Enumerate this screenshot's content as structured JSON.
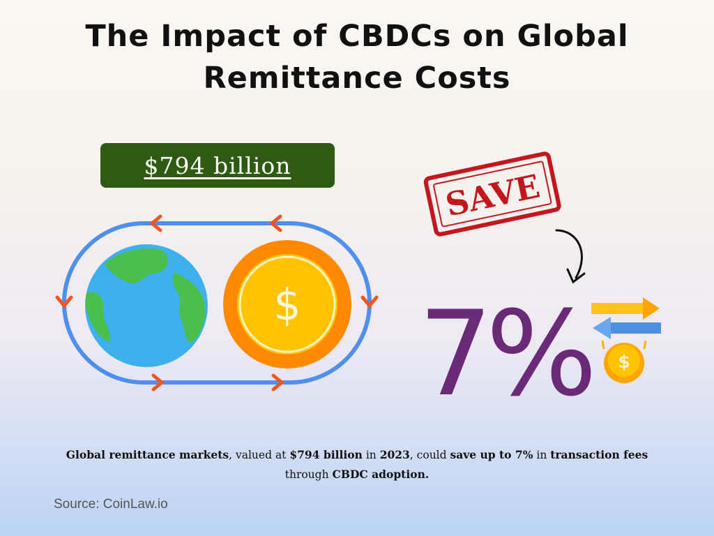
{
  "title": "The Impact of CBDCs on Global Remittance Costs",
  "market_value_badge": "$794 billion",
  "stamp": "SAVE",
  "savings_percent": "7%",
  "caption": {
    "part1_bold": "Global remittance markets",
    "part2": ", valued at ",
    "part3_bold": "$794 billion",
    "part4": " in ",
    "part5_bold": "2023",
    "part6": ", could ",
    "part7_bold": "save up to 7%",
    "part8": " in ",
    "part9_bold": "transaction fees",
    "part10": " through ",
    "part11_bold": "CBDC adoption.",
    "part12": ""
  },
  "source": "Source: CoinLaw.io",
  "coin_symbol": "$",
  "icons": [
    "globe-icon",
    "coin-icon",
    "cycle-arrows-icon",
    "save-stamp-icon",
    "curved-arrow-icon",
    "transfer-arrows-icon",
    "falling-coin-icon"
  ],
  "colors": {
    "badge_bg": "#2f5a12",
    "cycle_loop": "#4f8ff0",
    "cycle_arrows": "#f05522",
    "globe_water": "#3fb0ee",
    "globe_land": "#4cbe4c",
    "coin_outer": "#ff8a00",
    "coin_inner": "#ffc400",
    "stamp_red": "#c4161c",
    "percent_purple": "#6a2a78"
  }
}
